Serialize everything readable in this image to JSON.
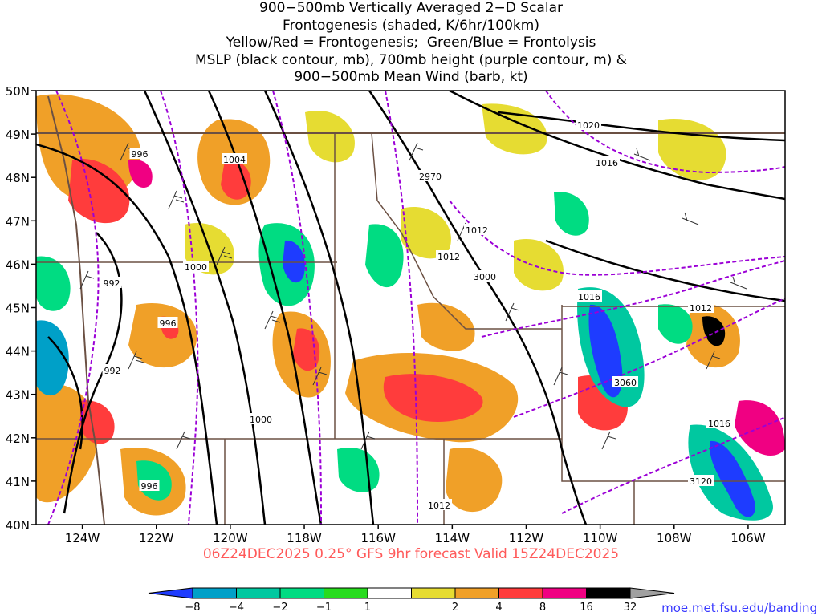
{
  "title": {
    "line1": "900−500mb Vertically Averaged 2−D Scalar",
    "line2": "Frontogenesis (shaded, K/6hr/100km)",
    "line3": "Yellow/Red = Frontogenesis;  Green/Blue = Frontolysis",
    "line4": "MSLP (black contour, mb), 700mb height (purple contour, m) &",
    "line5": "900−500mb Mean Wind (barb, kt)"
  },
  "map": {
    "lat_labels": [
      "50N",
      "49N",
      "48N",
      "47N",
      "46N",
      "45N",
      "44N",
      "43N",
      "42N",
      "41N",
      "40N"
    ],
    "lon_labels": [
      "124W",
      "122W",
      "120W",
      "118W",
      "116W",
      "114W",
      "112W",
      "110W",
      "108W",
      "106W"
    ],
    "lat_range": [
      40,
      50
    ],
    "lon_range": [
      -125.25,
      -105.0
    ],
    "shading_legend": "Yellow/Red = Frontogenesis; Green/Blue = Frontolysis",
    "mslp_contour_labels": [
      "996",
      "1004",
      "1000",
      "992",
      "996",
      "992",
      "1000",
      "996",
      "1012",
      "1012",
      "1016",
      "1020",
      "1016",
      "1012",
      "1016",
      "1012"
    ],
    "height_contour_labels": [
      "2970",
      "3000",
      "3060",
      "3120"
    ],
    "colors": {
      "mslp": "#000000",
      "height": "#9b00d6",
      "borders": "#6b5043"
    }
  },
  "colorbar": {
    "ticks": [
      "−8",
      "−4",
      "−2",
      "−1",
      "1",
      "2",
      "4",
      "8",
      "16",
      "32"
    ],
    "colors": [
      "#1e3cff",
      "#00a0c8",
      "#00c8a0",
      "#00dc82",
      "#28dc1e",
      "#ffffff",
      "#e6dc32",
      "#f0a028",
      "#ff3c3c",
      "#f00082",
      "#000000",
      "#a0a0a0"
    ]
  },
  "valid_line": "06Z24DEC2025 0.25° GFS 9hr forecast Valid 15Z24DEC2025",
  "source_url": "moe.met.fsu.edu/banding"
}
